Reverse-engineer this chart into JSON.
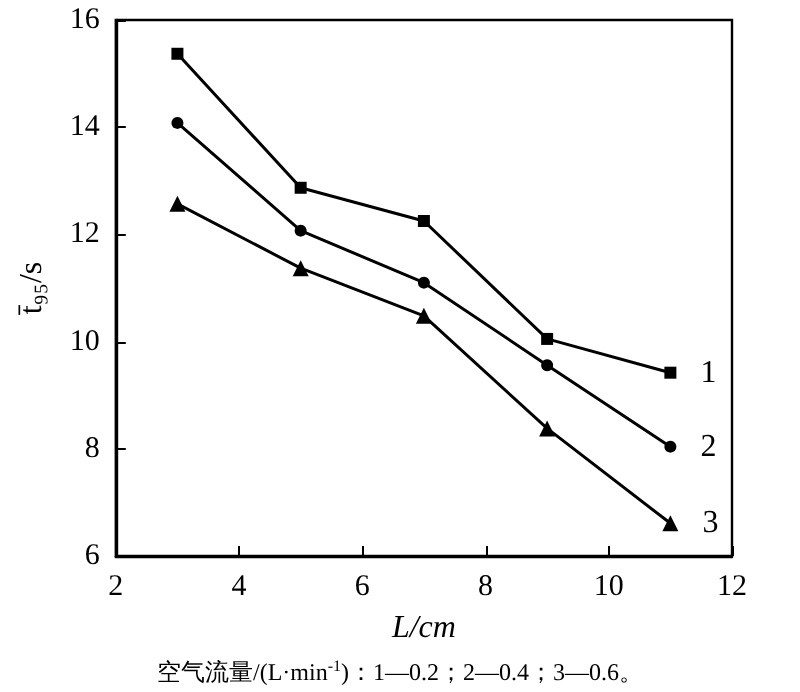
{
  "chart_data": {
    "type": "line",
    "xlabel": "L/cm",
    "ylabel": "t̄₉₅/s",
    "x": [
      3,
      5,
      7,
      9,
      11
    ],
    "series": [
      {
        "name": "1",
        "color": "#000000",
        "marker": "square",
        "values": [
          15.37,
          12.87,
          12.25,
          10.05,
          9.42
        ]
      },
      {
        "name": "2",
        "color": "#000000",
        "marker": "circle",
        "values": [
          14.08,
          12.07,
          11.1,
          9.56,
          8.04
        ]
      },
      {
        "name": "3",
        "color": "#000000",
        "marker": "triangle",
        "values": [
          12.57,
          11.37,
          10.48,
          8.38,
          6.61
        ]
      }
    ],
    "xlim": [
      2,
      12
    ],
    "xticks": [
      2,
      4,
      6,
      8,
      10,
      12
    ],
    "ylim": [
      6,
      16
    ],
    "yticks": [
      6,
      8,
      10,
      12,
      14,
      16
    ],
    "grid": false,
    "legend": false,
    "annotations": [
      "空气流量/(L·min$^{-1}$)：1—0.2；2—0.4；3—0.6。"
    ]
  }
}
